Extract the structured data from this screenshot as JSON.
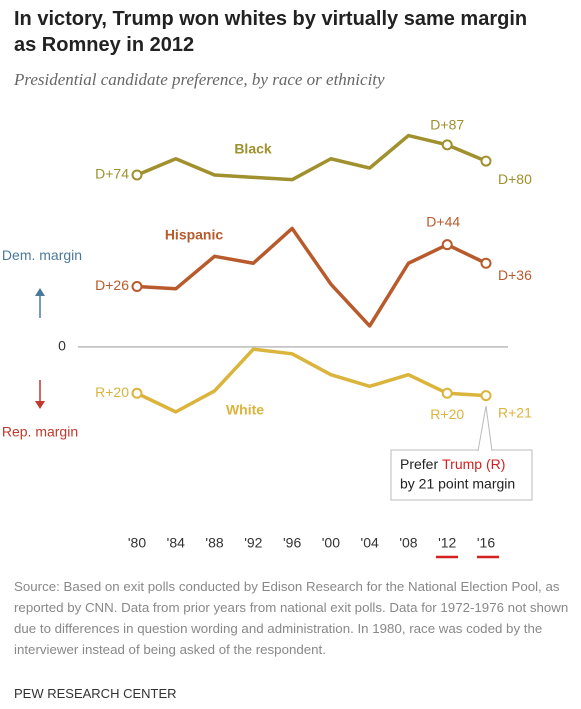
{
  "chart_data": {
    "type": "line",
    "title": "In victory, Trump won whites by virtually same margin as Romney in 2012",
    "subtitle": "Presidential candidate preference, by race or ethnicity",
    "categories": [
      "'80",
      "'84",
      "'88",
      "'92",
      "'96",
      "'00",
      "'04",
      "'08",
      "'12",
      "'16"
    ],
    "series": [
      {
        "name": "Black",
        "color": "#a0902e",
        "values": [
          74,
          81,
          74,
          73,
          72,
          81,
          77,
          91,
          87,
          80
        ],
        "value_labels": [
          "D+74",
          null,
          null,
          null,
          null,
          null,
          null,
          null,
          "D+87",
          "D+80"
        ]
      },
      {
        "name": "Hispanic",
        "color": "#b85a2c",
        "values": [
          26,
          25,
          39,
          36,
          51,
          27,
          9,
          36,
          44,
          36
        ],
        "value_labels": [
          "D+26",
          null,
          null,
          null,
          null,
          null,
          null,
          null,
          "D+44",
          "D+36"
        ]
      },
      {
        "name": "White",
        "color": "#dbb43c",
        "values": [
          -20,
          -28,
          -19,
          -1,
          -3,
          -12,
          -17,
          -12,
          -20,
          -21
        ],
        "value_labels": [
          "R+20",
          null,
          null,
          null,
          null,
          null,
          null,
          null,
          "R+20",
          "R+21"
        ]
      }
    ],
    "ylim": [
      -75,
      102
    ],
    "yticks": [
      0
    ],
    "dem_axis_label": "Dem. margin",
    "rep_axis_label": "Rep. margin",
    "callout": {
      "prefix": "Prefer",
      "highlight": "Trump (R)",
      "line2": "by 21 point margin"
    },
    "source": "Source: Based on exit polls conducted by Edison Research for the National Election Pool, as reported by CNN. Data from prior years from national exit polls. Data for 1972-1976 not shown due to differences in question wording and administration. In 1980, race was coded by the interviewer instead of being asked of the respondent.",
    "footer": "PEW RESEARCH CENTER"
  }
}
